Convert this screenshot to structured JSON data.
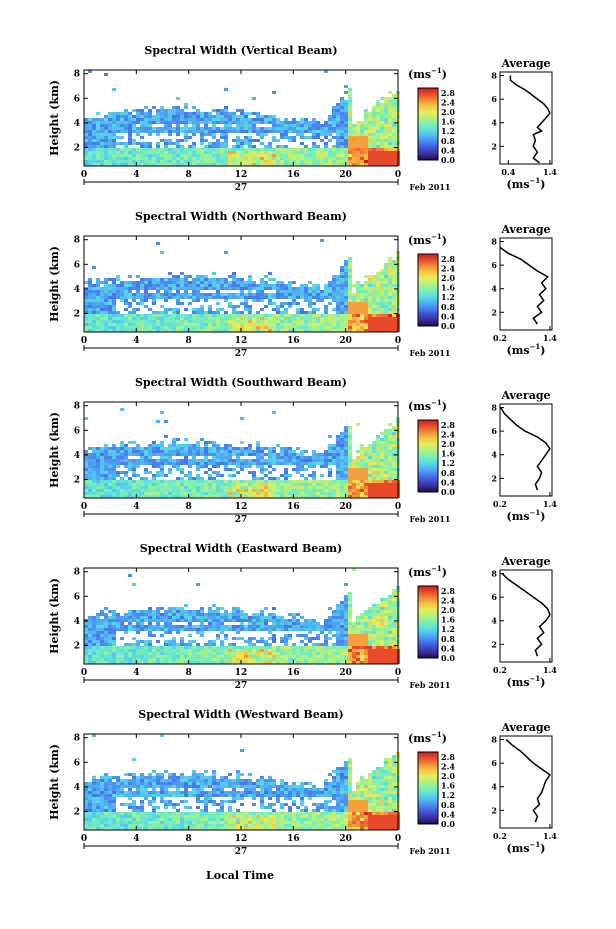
{
  "figure": {
    "xlabel": "Local Time",
    "ylabel": "Height (km)",
    "date_label": "Feb 2011",
    "day_label": "27",
    "unit_label": "(ms",
    "unit_exp": "−1",
    "unit_close": ")",
    "avg_title": "Average"
  },
  "colorbar": {
    "ticks": [
      "0.0",
      "0.4",
      "0.8",
      "1.2",
      "1.6",
      "2.0",
      "2.4",
      "2.8"
    ],
    "range": [
      0.0,
      3.0
    ],
    "colors": [
      "#1a0a4a",
      "#3a2f9a",
      "#3d55d8",
      "#4a86f0",
      "#4fb8f2",
      "#5ee0df",
      "#7ff0b0",
      "#b6f07a",
      "#e8ec5a",
      "#f7c244",
      "#f28a36",
      "#e84b2a",
      "#c81e1e"
    ]
  },
  "chart_data": [
    {
      "type": "heatmap",
      "title": "Spectral Width (Vertical Beam)",
      "xlabel": "Local Time",
      "ylabel": "Height (km)",
      "x_ticks": [
        "0",
        "4",
        "8",
        "12",
        "16",
        "20",
        "0"
      ],
      "xlim": [
        0,
        24
      ],
      "y_ticks": [
        "2",
        "4",
        "6",
        "8"
      ],
      "ylim": [
        0.5,
        8.3
      ],
      "profile": {
        "title": "Average",
        "xlabel": "(ms−1)",
        "x_ticks": [
          "0.4",
          "1.4"
        ],
        "xlim": [
          0.2,
          1.45
        ],
        "y_ticks": [
          "2",
          "4",
          "6",
          "8"
        ],
        "ylim": [
          0.5,
          8.3
        ],
        "heights": [
          0.6,
          1.0,
          1.5,
          2.0,
          2.5,
          3.0,
          3.3,
          3.6,
          4.0,
          4.4,
          4.8,
          5.2,
          5.6,
          6.0,
          6.4,
          6.8,
          7.2,
          7.6,
          8.0
        ],
        "values": [
          1.15,
          1.0,
          1.1,
          1.0,
          1.05,
          1.0,
          1.2,
          1.1,
          1.2,
          1.3,
          1.4,
          1.35,
          1.25,
          1.1,
          0.95,
          0.8,
          0.6,
          0.45,
          0.45
        ]
      }
    },
    {
      "type": "heatmap",
      "title": "Spectral Width (Northward Beam)",
      "xlabel": "Local Time",
      "ylabel": "Height (km)",
      "x_ticks": [
        "0",
        "4",
        "8",
        "12",
        "16",
        "20",
        "0"
      ],
      "xlim": [
        0,
        24
      ],
      "y_ticks": [
        "2",
        "4",
        "6",
        "8"
      ],
      "ylim": [
        0.5,
        8.3
      ],
      "profile": {
        "title": "Average",
        "xlabel": "(ms−1)",
        "x_ticks": [
          "0.2",
          "1.4"
        ],
        "xlim": [
          0.2,
          1.45
        ],
        "y_ticks": [
          "2",
          "4",
          "6",
          "8"
        ],
        "ylim": [
          0.5,
          8.3
        ],
        "heights": [
          1.0,
          1.5,
          2.0,
          2.5,
          3.0,
          3.5,
          4.0,
          4.5,
          5.0,
          5.5,
          6.0,
          6.5,
          7.0,
          7.5
        ],
        "values": [
          1.1,
          1.0,
          1.2,
          1.1,
          1.25,
          1.15,
          1.3,
          1.2,
          1.35,
          1.1,
          0.9,
          0.7,
          0.4,
          0.2
        ]
      }
    },
    {
      "type": "heatmap",
      "title": "Spectral Width (Southward Beam)",
      "xlabel": "Local Time",
      "ylabel": "Height (km)",
      "x_ticks": [
        "0",
        "4",
        "8",
        "12",
        "16",
        "20",
        "0"
      ],
      "xlim": [
        0,
        24
      ],
      "y_ticks": [
        "2",
        "4",
        "6",
        "8"
      ],
      "ylim": [
        0.5,
        8.3
      ],
      "profile": {
        "title": "Average",
        "xlabel": "(ms−1)",
        "x_ticks": [
          "0.2",
          "1.4"
        ],
        "xlim": [
          0.2,
          1.45
        ],
        "y_ticks": [
          "2",
          "4",
          "6",
          "8"
        ],
        "ylim": [
          0.5,
          8.3
        ],
        "heights": [
          1.0,
          1.5,
          2.0,
          2.5,
          3.0,
          3.5,
          4.0,
          4.5,
          5.0,
          5.5,
          6.0,
          6.5,
          7.0,
          7.5,
          8.0
        ],
        "values": [
          1.1,
          1.05,
          1.15,
          1.2,
          1.1,
          1.2,
          1.3,
          1.4,
          1.3,
          1.1,
          0.8,
          0.6,
          0.45,
          0.3,
          0.22
        ]
      }
    },
    {
      "type": "heatmap",
      "title": "Spectral Width (Eastward Beam)",
      "xlabel": "Local Time",
      "ylabel": "Height (km)",
      "x_ticks": [
        "0",
        "4",
        "8",
        "12",
        "16",
        "20",
        "0"
      ],
      "xlim": [
        0,
        24
      ],
      "y_ticks": [
        "2",
        "4",
        "6",
        "8"
      ],
      "ylim": [
        0.5,
        8.3
      ],
      "profile": {
        "title": "Average",
        "xlabel": "(ms−1)",
        "x_ticks": [
          "0.2",
          "1.4"
        ],
        "xlim": [
          0.2,
          1.45
        ],
        "y_ticks": [
          "2",
          "4",
          "6",
          "8"
        ],
        "ylim": [
          0.5,
          8.3
        ],
        "heights": [
          1.0,
          1.5,
          2.0,
          2.5,
          3.0,
          3.5,
          4.0,
          4.5,
          5.0,
          5.5,
          6.0,
          6.5,
          7.0,
          7.5,
          8.0
        ],
        "values": [
          1.1,
          1.05,
          1.2,
          1.1,
          1.25,
          1.15,
          1.3,
          1.4,
          1.35,
          1.2,
          1.0,
          0.8,
          0.6,
          0.4,
          0.25
        ]
      }
    },
    {
      "type": "heatmap",
      "title": "Spectral Width (Westward Beam)",
      "xlabel": "Local Time",
      "ylabel": "Height (km)",
      "x_ticks": [
        "0",
        "4",
        "8",
        "12",
        "16",
        "20",
        "0"
      ],
      "xlim": [
        0,
        24
      ],
      "y_ticks": [
        "2",
        "4",
        "6",
        "8"
      ],
      "ylim": [
        0.5,
        8.3
      ],
      "profile": {
        "title": "Average",
        "xlabel": "(ms−1)",
        "x_ticks": [
          "0.2",
          "1.4"
        ],
        "xlim": [
          0.2,
          1.45
        ],
        "y_ticks": [
          "2",
          "4",
          "6",
          "8"
        ],
        "ylim": [
          0.5,
          8.3
        ],
        "heights": [
          1.0,
          1.5,
          2.0,
          2.5,
          3.0,
          3.5,
          4.0,
          4.5,
          5.0,
          5.5,
          6.0,
          6.5,
          7.0,
          7.5,
          8.0
        ],
        "values": [
          1.05,
          1.1,
          1.0,
          1.15,
          1.1,
          1.2,
          1.25,
          1.3,
          1.4,
          1.2,
          1.0,
          0.85,
          0.7,
          0.5,
          0.35
        ]
      }
    }
  ]
}
